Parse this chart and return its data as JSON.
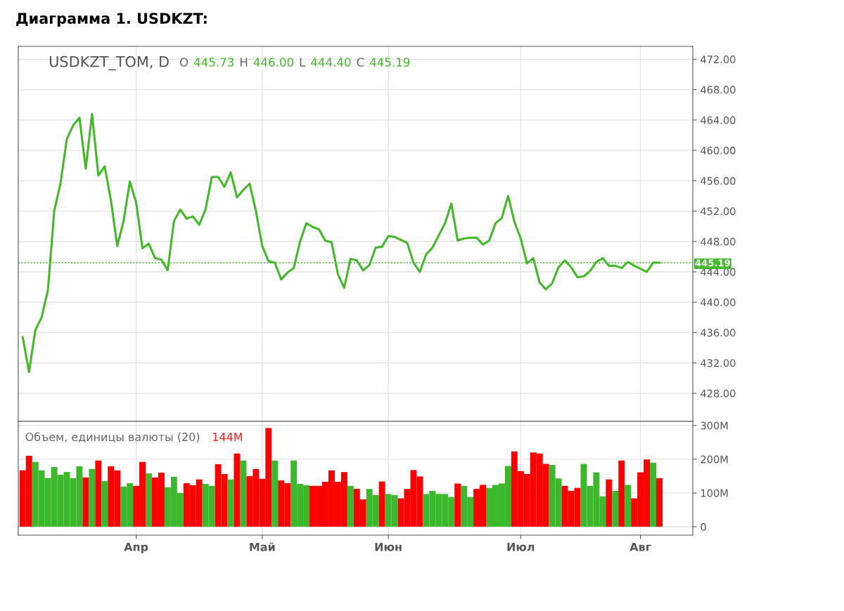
{
  "chart_data": [
    {
      "type": "line",
      "title": "Диаграмма 1. USDKZT:",
      "annotations": [
        "USDKZT_TOM, D",
        "O",
        "445.73",
        "H",
        "446.00",
        "L",
        "444.40",
        "C",
        "445.19"
      ],
      "series": [
        {
          "color": "#43b929",
          "values": [
            435.4,
            430.8,
            436.3,
            438.0,
            441.6,
            452.0,
            455.7,
            461.5,
            463.3,
            464.3,
            457.6,
            464.8,
            456.7,
            457.9,
            453.4,
            447.4,
            450.7,
            455.9,
            453.1,
            447.1,
            447.7,
            445.8,
            445.6,
            444.2,
            450.7,
            452.2,
            451.0,
            451.3,
            450.2,
            452.2,
            456.5,
            456.5,
            455.2,
            457.1,
            453.8,
            454.8,
            455.6,
            452.0,
            447.4,
            445.4,
            445.2,
            443.0,
            443.9,
            444.5,
            448.0,
            450.4,
            449.9,
            449.6,
            448.1,
            447.9,
            443.7,
            441.9,
            445.7,
            445.5,
            444.2,
            444.9,
            447.2,
            447.3,
            448.7,
            448.6,
            448.2,
            447.8,
            445.2,
            444.0,
            446.3,
            447.2,
            448.8,
            450.4,
            453.0,
            448.1,
            448.4,
            448.5,
            448.5,
            447.6,
            448.1,
            450.4,
            451.1,
            454.0,
            450.6,
            448.4,
            445.1,
            445.8,
            442.6,
            441.7,
            442.5,
            444.6,
            445.5,
            444.6,
            443.3,
            443.4,
            444.1,
            445.3,
            445.8,
            444.8,
            444.8,
            444.5,
            445.3,
            444.8,
            444.4,
            444.0,
            445.2,
            445.2,
            null,
            null,
            null,
            null,
            null
          ]
        }
      ],
      "ylim": [
        424.3,
        473.7
      ],
      "yticks": [
        {
          "value": 428,
          "label": "428.00"
        },
        {
          "value": 432,
          "label": "432.00"
        },
        {
          "value": 436,
          "label": "436.00"
        },
        {
          "value": 440,
          "label": "440.00"
        },
        {
          "value": 444,
          "label": "444.00"
        },
        {
          "value": 448,
          "label": "448.00"
        },
        {
          "value": 452,
          "label": "452.00"
        },
        {
          "value": 456,
          "label": "456.00"
        },
        {
          "value": 460,
          "label": "460.00"
        },
        {
          "value": 464,
          "label": "464.00"
        },
        {
          "value": 468,
          "label": "468.00"
        },
        {
          "value": 472,
          "label": "472.00"
        }
      ],
      "ref_lines": [
        {
          "axis": "y",
          "value": 445.19,
          "label": "445.19",
          "color": "#43b929",
          "line_style": "dotted"
        }
      ],
      "grid": true,
      "marker": "none",
      "line_style": "solid"
    },
    {
      "type": "bar",
      "title": "Объем, единицы валюты (20)",
      "annotations": [
        "144M"
      ],
      "categories": [
        null,
        null,
        null,
        null,
        null,
        null,
        null,
        null,
        null,
        null,
        null,
        null,
        null,
        null,
        null,
        null,
        null,
        null,
        "Апр",
        null,
        null,
        null,
        null,
        null,
        null,
        null,
        null,
        null,
        null,
        null,
        null,
        null,
        null,
        null,
        null,
        null,
        null,
        null,
        "Май",
        null,
        null,
        null,
        null,
        null,
        null,
        null,
        null,
        null,
        null,
        null,
        null,
        null,
        null,
        null,
        null,
        null,
        null,
        null,
        "Июн",
        null,
        null,
        null,
        null,
        null,
        null,
        null,
        null,
        null,
        null,
        null,
        null,
        null,
        null,
        null,
        null,
        null,
        null,
        null,
        null,
        "Июл",
        null,
        null,
        null,
        null,
        null,
        null,
        null,
        null,
        null,
        null,
        null,
        null,
        null,
        null,
        null,
        null,
        null,
        null,
        "Авг",
        null,
        null,
        null,
        null,
        null,
        null,
        null,
        null
      ],
      "values": [
        167,
        210,
        192,
        167,
        144,
        177,
        154,
        162,
        144,
        179,
        146,
        171,
        196,
        135,
        179,
        167,
        119,
        129,
        121,
        192,
        158,
        146,
        160,
        117,
        148,
        100,
        129,
        123,
        140,
        127,
        121,
        185,
        156,
        140,
        217,
        196,
        150,
        171,
        142,
        292,
        196,
        137,
        129,
        196,
        127,
        123,
        121,
        121,
        133,
        167,
        133,
        162,
        121,
        112,
        81,
        112,
        94,
        134,
        97,
        94,
        84,
        112,
        168,
        149,
        97,
        106,
        97,
        97,
        88,
        128,
        121,
        88,
        112,
        124,
        115,
        124,
        128,
        180,
        223,
        165,
        156,
        220,
        217,
        186,
        183,
        143,
        121,
        106,
        115,
        186,
        121,
        161,
        90,
        140,
        106,
        196,
        124,
        84,
        161,
        199,
        190,
        144,
        null,
        null,
        null,
        null,
        null
      ],
      "colors": [
        "#ff0000",
        "#ff0000",
        "#3cb82c",
        "#3cb82c",
        "#3cb82c",
        "#3cb82c",
        "#3cb82c",
        "#3cb82c",
        "#3cb82c",
        "#3cb82c",
        "#ff0000",
        "#3cb82c",
        "#ff0000",
        "#3cb82c",
        "#ff0000",
        "#ff0000",
        "#3cb82c",
        "#3cb82c",
        "#ff0000",
        "#ff0000",
        "#3cb82c",
        "#ff0000",
        "#ff0000",
        "#3cb82c",
        "#3cb82c",
        "#3cb82c",
        "#ff0000",
        "#ff0000",
        "#ff0000",
        "#3cb82c",
        "#3cb82c",
        "#ff0000",
        "#ff0000",
        "#3cb82c",
        "#ff0000",
        "#3cb82c",
        "#ff0000",
        "#ff0000",
        "#ff0000",
        "#ff0000",
        "#3cb82c",
        "#ff0000",
        "#ff0000",
        "#3cb82c",
        "#3cb82c",
        "#3cb82c",
        "#ff0000",
        "#ff0000",
        "#ff0000",
        "#ff0000",
        "#ff0000",
        "#ff0000",
        "#3cb82c",
        "#ff0000",
        "#ff0000",
        "#3cb82c",
        "#3cb82c",
        "#ff0000",
        "#3cb82c",
        "#3cb82c",
        "#ff0000",
        "#ff0000",
        "#ff0000",
        "#ff0000",
        "#3cb82c",
        "#3cb82c",
        "#3cb82c",
        "#3cb82c",
        "#3cb82c",
        "#ff0000",
        "#3cb82c",
        "#3cb82c",
        "#ff0000",
        "#ff0000",
        "#3cb82c",
        "#3cb82c",
        "#3cb82c",
        "#3cb82c",
        "#ff0000",
        "#ff0000",
        "#ff0000",
        "#ff0000",
        "#ff0000",
        "#ff0000",
        "#3cb82c",
        "#3cb82c",
        "#ff0000",
        "#ff0000",
        "#ff0000",
        "#3cb82c",
        "#3cb82c",
        "#3cb82c",
        "#3cb82c",
        "#ff0000",
        "#3cb82c",
        "#ff0000",
        "#3cb82c",
        "#ff0000",
        "#ff0000",
        "#ff0000",
        "#3cb82c",
        "#ff0000",
        null,
        null,
        null,
        null,
        null
      ],
      "ylim": [
        -25,
        312
      ],
      "yticks": [
        0,
        {
          "value": 100,
          "label": "100M"
        },
        {
          "value": 200,
          "label": "200M"
        },
        {
          "value": 300,
          "label": "300M"
        }
      ],
      "grid": true
    }
  ]
}
